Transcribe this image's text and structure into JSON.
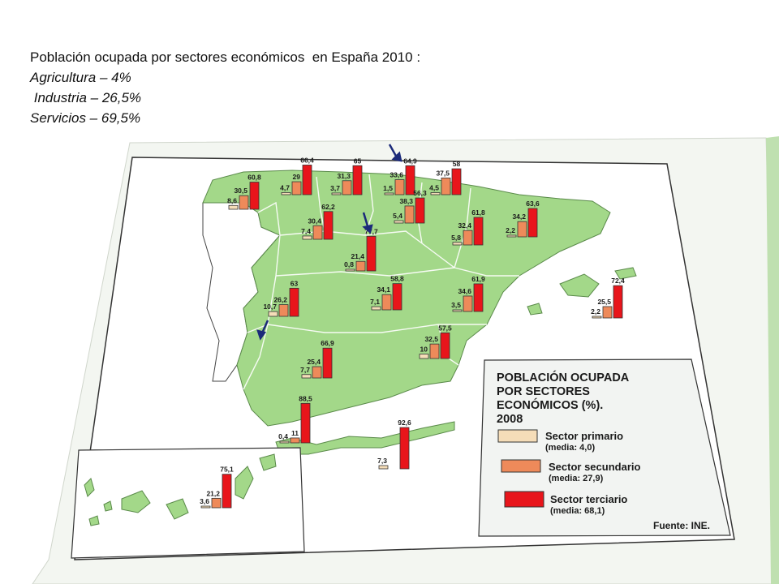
{
  "intro": {
    "title": "Población ocupada por sectores económicos  en España 2010 :",
    "lines": [
      "Agricultura – 4%",
      " Industria – 26,5%",
      "Servicios – 69,5%"
    ]
  },
  "legend": {
    "title_lines": [
      "POBLACIÓN OCUPADA",
      "POR SECTORES",
      "ECONÓMICOS (%).",
      "2008"
    ],
    "items": [
      {
        "label": "Sector primario",
        "media": "(media: 4,0)",
        "color": "#f5ddb8"
      },
      {
        "label": "Sector secundario",
        "media": "(media: 27,9)",
        "color": "#ee8a5a"
      },
      {
        "label": "Sector terciario",
        "media": "(media: 68,1)",
        "color": "#e8151b"
      }
    ],
    "source": "Fuente: INE."
  },
  "colors": {
    "land": "#a3d889",
    "sea": "#ffffff",
    "portugal": "#ffffff",
    "paper": "#e9efe6",
    "primary": "#f5ddb8",
    "secondary": "#ee8a5a",
    "tertiary": "#e8151b",
    "arrow": "#1b2a7a"
  },
  "regions": [
    {
      "labels": [
        "8,6",
        "30,5",
        "60,8"
      ],
      "values": [
        8.6,
        30.5,
        60.8
      ]
    },
    {
      "labels": [
        "4,7",
        "29",
        "66,4"
      ],
      "values": [
        4.7,
        29,
        66.4
      ]
    },
    {
      "labels": [
        "3,7",
        "31,3",
        "65"
      ],
      "values": [
        3.7,
        31.3,
        65
      ]
    },
    {
      "labels": [
        "1,5",
        "33,6",
        "64,9"
      ],
      "values": [
        1.5,
        33.6,
        64.9
      ]
    },
    {
      "labels": [
        "4,5",
        "37,5",
        "58"
      ],
      "values": [
        4.5,
        37.5,
        58
      ]
    },
    {
      "labels": [
        "5,4",
        "38,3",
        "56,3"
      ],
      "values": [
        5.4,
        38.3,
        56.3
      ]
    },
    {
      "labels": [
        "7,4",
        "30,4",
        "62,2"
      ],
      "values": [
        7.4,
        30.4,
        62.2
      ]
    },
    {
      "labels": [
        "0,8",
        "21,4",
        "77,7"
      ],
      "values": [
        0.8,
        21.4,
        77.7
      ]
    },
    {
      "labels": [
        "5,8",
        "32,4",
        "61,8"
      ],
      "values": [
        5.8,
        32.4,
        61.8
      ]
    },
    {
      "labels": [
        "2,2",
        "34,2",
        "63,6"
      ],
      "values": [
        2.2,
        34.2,
        63.6
      ]
    },
    {
      "labels": [
        "10,7",
        "26,2",
        "63"
      ],
      "values": [
        10.7,
        26.2,
        63
      ]
    },
    {
      "labels": [
        "7,1",
        "34,1",
        "58,8"
      ],
      "values": [
        7.1,
        34.1,
        58.8
      ]
    },
    {
      "labels": [
        "3,5",
        "34,6",
        "61,9"
      ],
      "values": [
        3.5,
        34.6,
        61.9
      ]
    },
    {
      "labels": [
        "2,2",
        "25,5",
        "72,4"
      ],
      "values": [
        2.2,
        25.5,
        72.4
      ]
    },
    {
      "labels": [
        "10",
        "32,5",
        "57,5"
      ],
      "values": [
        10,
        32.5,
        57.5
      ]
    },
    {
      "labels": [
        "7,7",
        "25,4",
        "66,9"
      ],
      "values": [
        7.7,
        25.4,
        66.9
      ]
    },
    {
      "labels": [
        "0,4",
        "11",
        "88,5"
      ],
      "values": [
        0.4,
        11,
        88.5
      ]
    },
    {
      "labels": [
        "7,3",
        "",
        "92,6"
      ],
      "values": [
        7.3,
        0,
        92.6
      ]
    },
    {
      "labels": [
        "3,6",
        "21,2",
        "75,1"
      ],
      "values": [
        3.6,
        21.2,
        75.1
      ]
    }
  ]
}
